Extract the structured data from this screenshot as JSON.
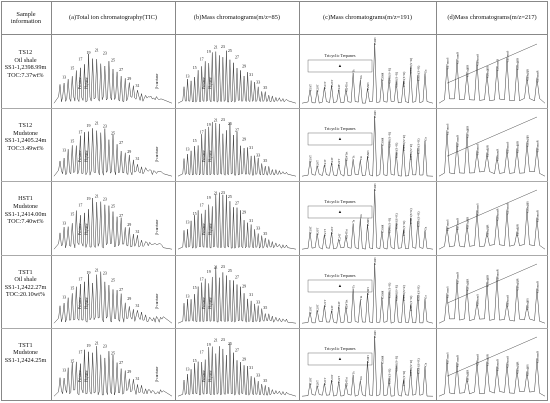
{
  "columns": {
    "sample": "Sample\ninformation",
    "tic": "(a)Total ion chromatography(TIC)",
    "m85": "(b)Mass chromatograms(m/z=85)",
    "m191": "(c)Mass chromatograms(m/z=191)",
    "m217": "(d)Mass chromatograms(m/z=217)"
  },
  "samples": [
    {
      "lines": [
        "TS12",
        "Oil shale",
        "SS1-1,2398.99m",
        "TOC:7.37wt%"
      ]
    },
    {
      "lines": [
        "TS12",
        "Mudstone",
        "SS1-1,2405.24m",
        "TOC:3.49wt%"
      ]
    },
    {
      "lines": [
        "HST1",
        "Mudstone",
        "SS1-1,2414.00m",
        "TOC:7.40wt%"
      ]
    },
    {
      "lines": [
        "TST1",
        "Oil shale",
        "SS1-1,2422.27m",
        "TOC:20.10wt%"
      ]
    },
    {
      "lines": [
        "TST1",
        "Mudstone",
        "SS1-1,2424.25m"
      ]
    }
  ],
  "labels": {
    "pristane": "Pristane",
    "phytane": "Phytane",
    "carotene": "β-carotane",
    "tricyclic": "Tricyclic Terpanes",
    "triangle": "▲",
    "ts": "Ts",
    "tm": "Tm",
    "c30h": "C30H",
    "c29h": "C29H"
  },
  "chart_data": [
    {
      "type": "line",
      "name": "TIC",
      "carbon_numbers": [
        13,
        15,
        17,
        19,
        21,
        23,
        25,
        27,
        29,
        31
      ]
    },
    {
      "type": "line",
      "name": "m/z 85",
      "carbon_numbers": [
        13,
        15,
        17,
        19,
        21,
        23,
        25,
        27,
        29,
        31,
        33,
        35
      ]
    },
    {
      "type": "line",
      "name": "m/z 191",
      "peak_labels": [
        "C19T",
        "C20T",
        "C21T",
        "C23T",
        "C24T",
        "C24Tet",
        "Ts",
        "Tm",
        "C29H",
        "C30H",
        "C30M",
        "C31H(S+R)",
        "C32H(S+R)",
        "C33H(S+R)",
        "C34H(S+R)",
        "C35H(S+R)",
        "Ga"
      ]
    },
    {
      "type": "line",
      "name": "m/z 217",
      "peak_labels": [
        "C27αααS",
        "C27αααR",
        "C27αββR",
        "C28αααS",
        "C28αββR",
        "C28αααR",
        "C29αααS",
        "C29αββR",
        "C29αββS",
        "C29αααR"
      ]
    }
  ]
}
